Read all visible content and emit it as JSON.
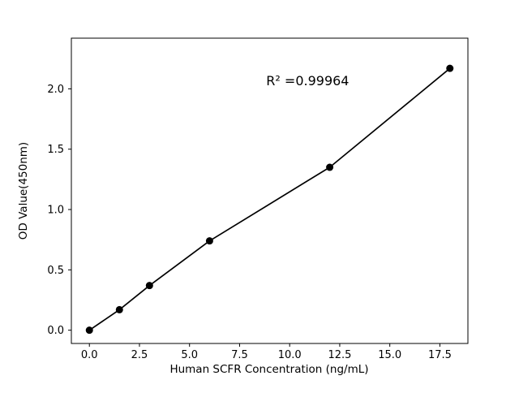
{
  "chart_data": {
    "type": "scatter",
    "title": "",
    "xlabel": "Human SCFR Concentration (ng/mL)",
    "ylabel": "OD Value(450nm)",
    "annotation": "R² =0.99964",
    "annotation_xy": [
      10.9,
      2.03
    ],
    "x": [
      0,
      1.5,
      3,
      6,
      12,
      18
    ],
    "y": [
      0.0,
      0.17,
      0.37,
      0.74,
      1.35,
      2.17
    ],
    "xticks": [
      0,
      2.5,
      5,
      7.5,
      10,
      12.5,
      15,
      17.5
    ],
    "yticks": [
      0,
      0.5,
      1,
      1.5,
      2
    ],
    "xlim": [
      -0.9,
      18.9
    ],
    "ylim": [
      -0.11,
      2.42
    ],
    "tick_decimals": 1,
    "grid": false,
    "legend": "none",
    "marker_color": "#000000",
    "line_color": "#000000",
    "background_color": "#ffffff"
  }
}
